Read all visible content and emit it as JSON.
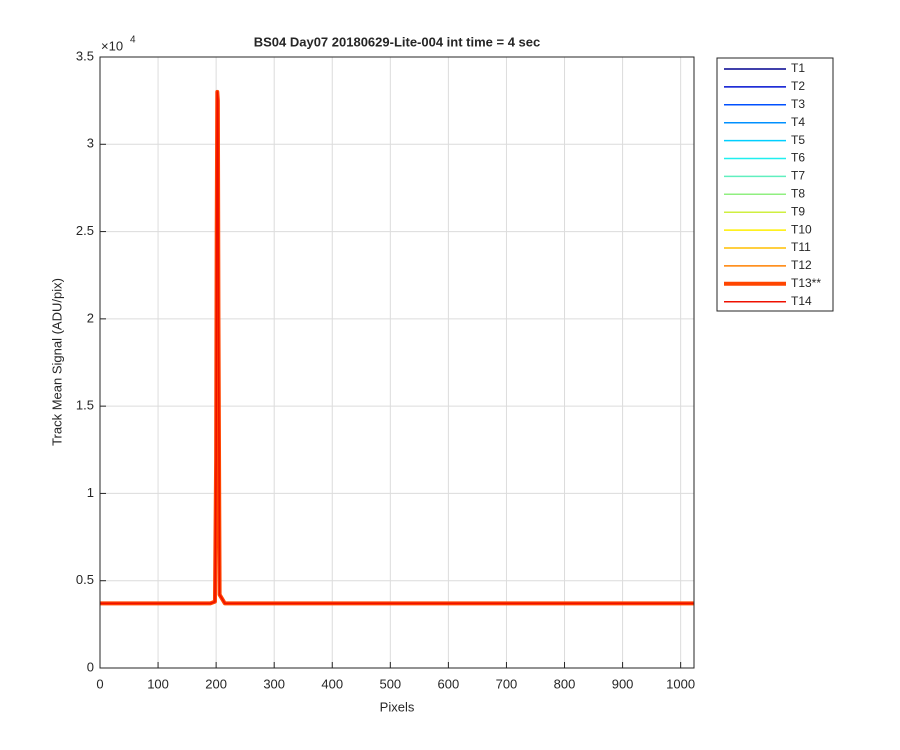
{
  "chart_data": {
    "type": "line",
    "title": "BS04 Day07 20180629-Lite-004 int time = 4 sec",
    "x_label": "Pixels",
    "y_label": "Track Mean Signal (ADU/pix)",
    "y_multiplier": {
      "base": "×10",
      "exponent": "4"
    },
    "x": [
      0,
      190,
      198,
      200,
      201,
      202,
      203,
      204,
      206,
      215,
      1023
    ],
    "series": [
      {
        "name": "T1",
        "color": "#00008f",
        "values": [
          3700,
          3700,
          3800,
          12000,
          25000,
          33000,
          32500,
          20000,
          4200,
          3700,
          3700
        ]
      },
      {
        "name": "T2",
        "color": "#0010d0",
        "values": [
          3700,
          3700,
          3800,
          12000,
          25000,
          33000,
          32500,
          20000,
          4200,
          3700,
          3700
        ]
      },
      {
        "name": "T3",
        "color": "#0050ff",
        "values": [
          3700,
          3700,
          3800,
          12000,
          25000,
          33000,
          32500,
          20000,
          4200,
          3700,
          3700
        ]
      },
      {
        "name": "T4",
        "color": "#0090ff",
        "values": [
          3700,
          3700,
          3800,
          12000,
          25000,
          33000,
          32500,
          20000,
          4200,
          3700,
          3700
        ]
      },
      {
        "name": "T5",
        "color": "#00cfff",
        "values": [
          3700,
          3700,
          3800,
          12000,
          25000,
          33000,
          32500,
          20000,
          4200,
          3700,
          3700
        ]
      },
      {
        "name": "T6",
        "color": "#20efef",
        "values": [
          3700,
          3700,
          3800,
          12000,
          25000,
          33000,
          32500,
          20000,
          4200,
          3700,
          3700
        ]
      },
      {
        "name": "T7",
        "color": "#60efbf",
        "values": [
          3700,
          3700,
          3800,
          12000,
          25000,
          33000,
          32500,
          20000,
          4200,
          3700,
          3700
        ]
      },
      {
        "name": "T8",
        "color": "#90ef80",
        "values": [
          3700,
          3700,
          3800,
          12000,
          25000,
          33000,
          32500,
          20000,
          4200,
          3700,
          3700
        ]
      },
      {
        "name": "T9",
        "color": "#cfef40",
        "values": [
          3700,
          3700,
          3800,
          12000,
          25000,
          33000,
          32500,
          20000,
          4200,
          3700,
          3700
        ]
      },
      {
        "name": "T10",
        "color": "#ffef00",
        "values": [
          3700,
          3700,
          3800,
          12000,
          25000,
          33000,
          32500,
          20000,
          4200,
          3700,
          3700
        ]
      },
      {
        "name": "T11",
        "color": "#ffbf00",
        "values": [
          3700,
          3700,
          3800,
          12000,
          25000,
          33000,
          32500,
          20000,
          4200,
          3700,
          3700
        ]
      },
      {
        "name": "T12",
        "color": "#ff8000",
        "values": [
          3700,
          3700,
          3800,
          12000,
          25000,
          33000,
          32500,
          20000,
          4200,
          3700,
          3700
        ]
      },
      {
        "name": "T13**",
        "color": "#ff4500",
        "line_width": 4,
        "values": [
          3700,
          3700,
          3800,
          12000,
          25000,
          33000,
          32500,
          20000,
          4200,
          3700,
          3700
        ]
      },
      {
        "name": "T14",
        "color": "#ef1000",
        "values": [
          3700,
          3700,
          3800,
          12000,
          25000,
          33000,
          32500,
          20000,
          4200,
          3700,
          3700
        ]
      }
    ],
    "xlim": [
      0,
      1023
    ],
    "ylim": [
      0,
      35000
    ],
    "xticks": [
      0,
      100,
      200,
      300,
      400,
      500,
      600,
      700,
      800,
      900,
      1000
    ],
    "yticks": [
      0,
      {
        "value": 5000,
        "label": "0.5"
      },
      {
        "value": 10000,
        "label": "1"
      },
      {
        "value": 15000,
        "label": "1.5"
      },
      {
        "value": 20000,
        "label": "2"
      },
      {
        "value": 25000,
        "label": "2.5"
      },
      {
        "value": 30000,
        "label": "3"
      },
      {
        "value": 35000,
        "label": "3.5"
      }
    ],
    "grid": true,
    "legend": "outside-right"
  }
}
